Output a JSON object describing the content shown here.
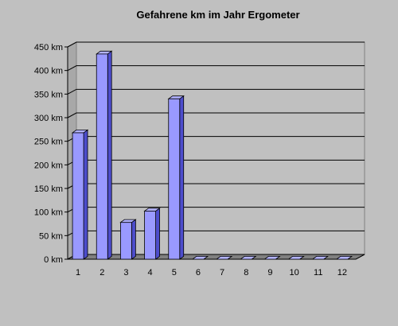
{
  "chart_data": {
    "type": "bar",
    "title": "Gefahrene km im Jahr Ergometer",
    "xlabel": "",
    "ylabel": "",
    "categories": [
      "1",
      "2",
      "3",
      "4",
      "5",
      "6",
      "7",
      "8",
      "9",
      "10",
      "11",
      "12"
    ],
    "values": [
      268,
      435,
      78,
      102,
      340,
      0,
      0,
      0,
      0,
      0,
      0,
      0
    ],
    "ylim": [
      0,
      450
    ],
    "yticks": [
      "0 km",
      "50 km",
      "100 km",
      "150 km",
      "200 km",
      "250 km",
      "300 km",
      "350 km",
      "400 km",
      "450 km"
    ],
    "grid": true,
    "legend": "none",
    "colors": {
      "background": "#c0c0c0",
      "bar_front": "#9999ff",
      "bar_side": "#4d4dcc",
      "bar_top": "#b3b3ff",
      "floor": "#808080",
      "grid": "#000000"
    }
  }
}
